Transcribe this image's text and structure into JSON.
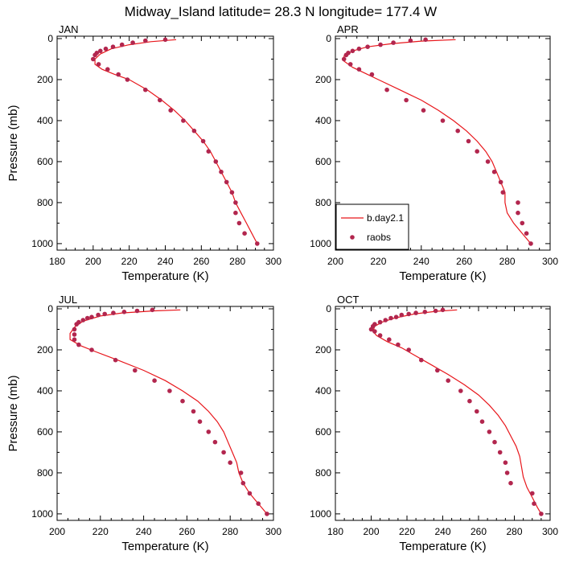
{
  "page": {
    "title": "Midway_Island  latitude= 28.3 N longitude= 177.4 W"
  },
  "colors": {
    "model_line": "#e8161b",
    "obs_marker": "#b2264e"
  },
  "chart_data": [
    {
      "type": "line",
      "panel": "JAN",
      "xlabel": "Temperature (K)",
      "ylabel": "Pressure (mb)",
      "xlim": [
        180,
        300
      ],
      "ylim": [
        0,
        1020
      ],
      "y_inverted": true,
      "x_ticks": [
        180,
        200,
        220,
        240,
        260,
        280,
        300
      ],
      "y_ticks": [
        0,
        200,
        400,
        600,
        800,
        1000
      ],
      "legend": null,
      "series": [
        {
          "name": "b.day2.1",
          "style": "line",
          "points": [
            [
              246,
              5
            ],
            [
              232,
              15
            ],
            [
              220,
              30
            ],
            [
              210,
              50
            ],
            [
              204,
              75
            ],
            [
              201,
              100
            ],
            [
              201,
              125
            ],
            [
              205,
              150
            ],
            [
              212,
              175
            ],
            [
              220,
              200
            ],
            [
              230,
              250
            ],
            [
              238,
              300
            ],
            [
              245,
              350
            ],
            [
              251,
              400
            ],
            [
              256,
              450
            ],
            [
              261,
              500
            ],
            [
              265,
              550
            ],
            [
              268,
              600
            ],
            [
              271,
              650
            ],
            [
              274,
              700
            ],
            [
              277,
              750
            ],
            [
              279,
              800
            ],
            [
              282,
              850
            ],
            [
              285,
              900
            ],
            [
              288,
              950
            ],
            [
              291,
              1000
            ]
          ]
        },
        {
          "name": "raobs",
          "style": "marker",
          "points": [
            [
              240,
              5
            ],
            [
              229,
              10
            ],
            [
              222,
              20
            ],
            [
              216,
              30
            ],
            [
              211,
              40
            ],
            [
              207,
              50
            ],
            [
              204,
              60
            ],
            [
              202,
              70
            ],
            [
              201,
              80
            ],
            [
              200,
              100
            ],
            [
              203,
              125
            ],
            [
              208,
              150
            ],
            [
              214,
              175
            ],
            [
              219,
              200
            ],
            [
              229,
              250
            ],
            [
              237,
              300
            ],
            [
              243,
              350
            ],
            [
              250,
              400
            ],
            [
              256,
              450
            ],
            [
              261,
              500
            ],
            [
              264,
              550
            ],
            [
              268,
              600
            ],
            [
              271,
              650
            ],
            [
              274,
              700
            ],
            [
              277,
              750
            ],
            [
              279,
              800
            ],
            [
              279,
              850
            ],
            [
              281,
              900
            ],
            [
              284,
              950
            ],
            [
              291,
              1000
            ]
          ]
        }
      ]
    },
    {
      "type": "line",
      "panel": "APR",
      "xlabel": "Temperature (K)",
      "ylabel": "",
      "xlim": [
        200,
        300
      ],
      "ylim": [
        0,
        1020
      ],
      "y_inverted": true,
      "x_ticks": [
        200,
        220,
        240,
        260,
        280,
        300
      ],
      "y_ticks": [
        0,
        200,
        400,
        600,
        800,
        1000
      ],
      "legend": {
        "position": "bottom-left",
        "entries": [
          {
            "label": "b.day2.1",
            "style": "line"
          },
          {
            "label": "raobs",
            "style": "marker"
          }
        ]
      },
      "series": [
        {
          "name": "b.day2.1",
          "style": "line",
          "points": [
            [
              256,
              5
            ],
            [
              240,
              12
            ],
            [
              226,
              25
            ],
            [
              215,
              40
            ],
            [
              208,
              60
            ],
            [
              204,
              85
            ],
            [
              204,
              110
            ],
            [
              208,
              140
            ],
            [
              214,
              170
            ],
            [
              220,
              200
            ],
            [
              230,
              250
            ],
            [
              240,
              300
            ],
            [
              248,
              350
            ],
            [
              255,
              400
            ],
            [
              261,
              450
            ],
            [
              266,
              500
            ],
            [
              270,
              550
            ],
            [
              273,
              600
            ],
            [
              275,
              650
            ],
            [
              277,
              700
            ],
            [
              279,
              750
            ],
            [
              279,
              800
            ],
            [
              280,
              850
            ],
            [
              283,
              900
            ],
            [
              287,
              950
            ],
            [
              291,
              1000
            ]
          ]
        },
        {
          "name": "raobs",
          "style": "marker",
          "points": [
            [
              242,
              5
            ],
            [
              235,
              10
            ],
            [
              227,
              20
            ],
            [
              221,
              30
            ],
            [
              215,
              40
            ],
            [
              211,
              50
            ],
            [
              208,
              60
            ],
            [
              206,
              70
            ],
            [
              205,
              80
            ],
            [
              204,
              100
            ],
            [
              207,
              125
            ],
            [
              211,
              150
            ],
            [
              217,
              175
            ],
            [
              224,
              250
            ],
            [
              233,
              300
            ],
            [
              241,
              350
            ],
            [
              250,
              400
            ],
            [
              257,
              450
            ],
            [
              262,
              500
            ],
            [
              266,
              550
            ],
            [
              271,
              600
            ],
            [
              274,
              650
            ],
            [
              277,
              700
            ],
            [
              278,
              750
            ],
            [
              285,
              800
            ],
            [
              285,
              850
            ],
            [
              287,
              900
            ],
            [
              289,
              950
            ],
            [
              291,
              1000
            ]
          ]
        }
      ]
    },
    {
      "type": "line",
      "panel": "JUL",
      "xlabel": "Temperature (K)",
      "ylabel": "Pressure (mb)",
      "xlim": [
        200,
        300
      ],
      "ylim": [
        0,
        1020
      ],
      "y_inverted": true,
      "x_ticks": [
        200,
        220,
        240,
        260,
        280,
        300
      ],
      "y_ticks": [
        0,
        200,
        400,
        600,
        800,
        1000
      ],
      "legend": null,
      "series": [
        {
          "name": "b.day2.1",
          "style": "line",
          "points": [
            [
              257,
              5
            ],
            [
              245,
              10
            ],
            [
              230,
              20
            ],
            [
              220,
              35
            ],
            [
              212,
              60
            ],
            [
              208,
              90
            ],
            [
              206,
              120
            ],
            [
              206,
              150
            ],
            [
              211,
              180
            ],
            [
              218,
              210
            ],
            [
              228,
              250
            ],
            [
              240,
              300
            ],
            [
              250,
              350
            ],
            [
              258,
              400
            ],
            [
              265,
              450
            ],
            [
              270,
              500
            ],
            [
              274,
              550
            ],
            [
              277,
              600
            ],
            [
              279,
              650
            ],
            [
              281,
              700
            ],
            [
              283,
              750
            ],
            [
              284,
              800
            ],
            [
              286,
              850
            ],
            [
              289,
              900
            ],
            [
              293,
              950
            ],
            [
              297,
              1000
            ]
          ]
        },
        {
          "name": "raobs",
          "style": "marker",
          "points": [
            [
              244,
              5
            ],
            [
              237,
              10
            ],
            [
              231,
              15
            ],
            [
              226,
              20
            ],
            [
              222,
              25
            ],
            [
              219,
              30
            ],
            [
              216,
              40
            ],
            [
              214,
              45
            ],
            [
              212,
              55
            ],
            [
              210,
              65
            ],
            [
              209,
              75
            ],
            [
              208,
              100
            ],
            [
              208,
              125
            ],
            [
              208,
              150
            ],
            [
              210,
              175
            ],
            [
              216,
              200
            ],
            [
              227,
              250
            ],
            [
              236,
              300
            ],
            [
              245,
              350
            ],
            [
              252,
              400
            ],
            [
              258,
              450
            ],
            [
              263,
              500
            ],
            [
              266,
              550
            ],
            [
              270,
              600
            ],
            [
              273,
              650
            ],
            [
              277,
              700
            ],
            [
              280,
              750
            ],
            [
              285,
              800
            ],
            [
              286,
              850
            ],
            [
              289,
              900
            ],
            [
              293,
              950
            ],
            [
              297,
              1000
            ]
          ]
        }
      ]
    },
    {
      "type": "line",
      "panel": "OCT",
      "xlabel": "Temperature (K)",
      "ylabel": "",
      "xlim": [
        180,
        300
      ],
      "ylim": [
        0,
        1020
      ],
      "y_inverted": true,
      "x_ticks": [
        180,
        200,
        220,
        240,
        260,
        280,
        300
      ],
      "y_ticks": [
        0,
        200,
        400,
        600,
        800,
        1000
      ],
      "legend": null,
      "series": [
        {
          "name": "b.day2.1",
          "style": "line",
          "points": [
            [
              248,
              5
            ],
            [
              236,
              12
            ],
            [
              224,
              25
            ],
            [
              213,
              45
            ],
            [
              206,
              65
            ],
            [
              202,
              85
            ],
            [
              201,
              110
            ],
            [
              203,
              130
            ],
            [
              209,
              160
            ],
            [
              217,
              190
            ],
            [
              223,
              220
            ],
            [
              233,
              270
            ],
            [
              243,
              320
            ],
            [
              252,
              370
            ],
            [
              260,
              420
            ],
            [
              266,
              470
            ],
            [
              271,
              520
            ],
            [
              275,
              570
            ],
            [
              278,
              620
            ],
            [
              281,
              670
            ],
            [
              283,
              720
            ],
            [
              284,
              770
            ],
            [
              285,
              820
            ],
            [
              287,
              870
            ],
            [
              290,
              920
            ],
            [
              293,
              970
            ],
            [
              295,
              1000
            ]
          ]
        },
        {
          "name": "raobs",
          "style": "marker",
          "points": [
            [
              240,
              5
            ],
            [
              236,
              10
            ],
            [
              230,
              15
            ],
            [
              225,
              20
            ],
            [
              221,
              25
            ],
            [
              217,
              30
            ],
            [
              214,
              40
            ],
            [
              211,
              45
            ],
            [
              208,
              55
            ],
            [
              205,
              65
            ],
            [
              202,
              75
            ],
            [
              201,
              85
            ],
            [
              200,
              100
            ],
            [
              202,
              110
            ],
            [
              205,
              130
            ],
            [
              210,
              150
            ],
            [
              215,
              175
            ],
            [
              221,
              200
            ],
            [
              228,
              250
            ],
            [
              237,
              300
            ],
            [
              243,
              350
            ],
            [
              250,
              400
            ],
            [
              255,
              450
            ],
            [
              259,
              500
            ],
            [
              262,
              550
            ],
            [
              266,
              600
            ],
            [
              269,
              650
            ],
            [
              272,
              700
            ],
            [
              275,
              750
            ],
            [
              276,
              800
            ],
            [
              278,
              850
            ],
            [
              290,
              900
            ],
            [
              291,
              950
            ],
            [
              295,
              1000
            ]
          ]
        }
      ]
    }
  ]
}
